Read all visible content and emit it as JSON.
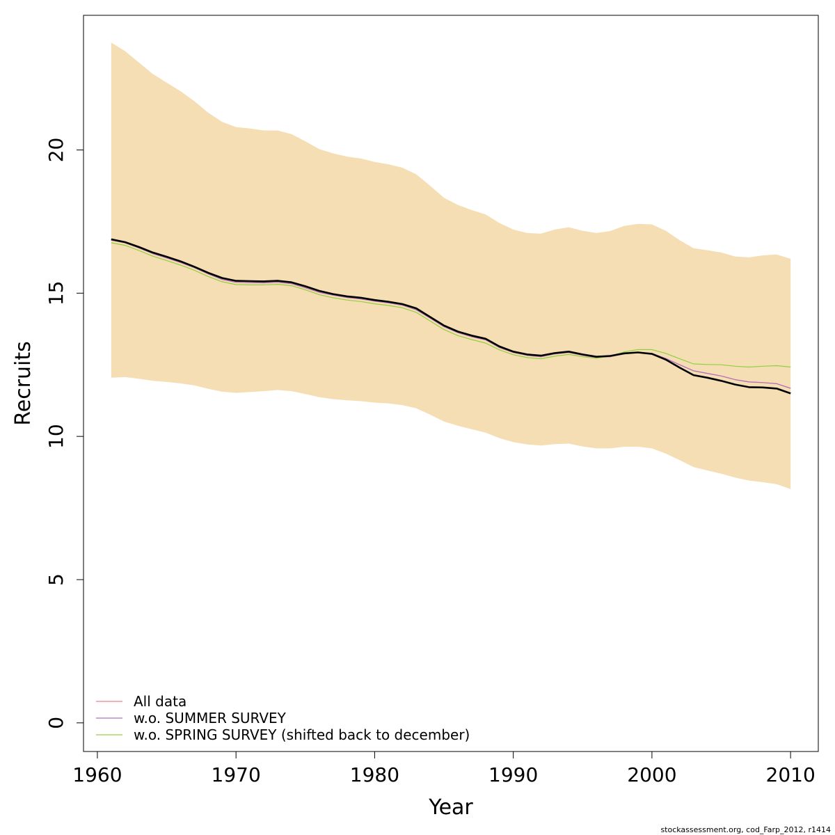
{
  "chart_data": {
    "type": "line",
    "xlabel": "Year",
    "ylabel": "Recruits",
    "xlim": [
      1959,
      2012
    ],
    "ylim": [
      -1,
      24.7
    ],
    "xticks": [
      1960,
      1970,
      1980,
      1990,
      2000,
      2010
    ],
    "yticks": [
      0,
      5,
      10,
      15,
      20
    ],
    "grid": false,
    "legend_position": "bottom-left",
    "x": [
      1961,
      1962,
      1963,
      1964,
      1965,
      1966,
      1967,
      1968,
      1969,
      1970,
      1971,
      1972,
      1973,
      1974,
      1975,
      1976,
      1977,
      1978,
      1979,
      1980,
      1981,
      1982,
      1983,
      1984,
      1985,
      1986,
      1987,
      1988,
      1989,
      1990,
      1991,
      1992,
      1993,
      1994,
      1995,
      1996,
      1997,
      1998,
      1999,
      2000,
      2001,
      2002,
      2003,
      2004,
      2005,
      2006,
      2007,
      2008,
      2009,
      2010
    ],
    "band": {
      "color": "#F5DEB3",
      "upper": [
        23.75,
        23.45,
        23.05,
        22.65,
        22.35,
        22.05,
        21.7,
        21.3,
        20.98,
        20.8,
        20.75,
        20.68,
        20.68,
        20.55,
        20.3,
        20.03,
        19.88,
        19.77,
        19.7,
        19.58,
        19.5,
        19.38,
        19.15,
        18.75,
        18.33,
        18.08,
        17.9,
        17.75,
        17.45,
        17.22,
        17.1,
        17.08,
        17.22,
        17.3,
        17.18,
        17.1,
        17.17,
        17.35,
        17.42,
        17.4,
        17.18,
        16.85,
        16.57,
        16.5,
        16.42,
        16.28,
        16.25,
        16.32,
        16.35,
        16.2
      ],
      "lower": [
        12.05,
        12.07,
        12.01,
        11.94,
        11.9,
        11.85,
        11.78,
        11.66,
        11.56,
        11.52,
        11.55,
        11.58,
        11.62,
        11.58,
        11.48,
        11.37,
        11.3,
        11.26,
        11.23,
        11.18,
        11.15,
        11.09,
        10.98,
        10.76,
        10.52,
        10.37,
        10.25,
        10.13,
        9.94,
        9.8,
        9.72,
        9.68,
        9.73,
        9.75,
        9.65,
        9.58,
        9.58,
        9.64,
        9.64,
        9.58,
        9.4,
        9.17,
        8.93,
        8.81,
        8.7,
        8.56,
        8.46,
        8.4,
        8.33,
        8.16
      ]
    },
    "series": [
      {
        "name": "All data",
        "color": "#F08080",
        "width": 1.2,
        "values": [
          16.85,
          16.76,
          16.58,
          16.38,
          16.23,
          16.07,
          15.89,
          15.67,
          15.48,
          15.38,
          15.37,
          15.36,
          15.38,
          15.33,
          15.19,
          15.03,
          14.93,
          14.85,
          14.8,
          14.72,
          14.66,
          14.58,
          14.42,
          14.13,
          13.83,
          13.62,
          13.48,
          13.37,
          13.1,
          12.93,
          12.83,
          12.78,
          12.88,
          12.93,
          12.83,
          12.75,
          12.78,
          12.88,
          12.93,
          12.9,
          12.72,
          12.5,
          12.29,
          12.2,
          12.11,
          11.98,
          11.9,
          11.88,
          11.84,
          11.68
        ]
      },
      {
        "name": "w.o. SUMMER SURVEY",
        "color": "#B070C0",
        "width": 1.2,
        "values": [
          16.85,
          16.76,
          16.58,
          16.38,
          16.23,
          16.07,
          15.89,
          15.67,
          15.48,
          15.38,
          15.37,
          15.36,
          15.38,
          15.33,
          15.19,
          15.03,
          14.93,
          14.85,
          14.8,
          14.72,
          14.66,
          14.58,
          14.42,
          14.13,
          13.83,
          13.62,
          13.48,
          13.37,
          13.1,
          12.93,
          12.83,
          12.78,
          12.88,
          12.93,
          12.83,
          12.75,
          12.78,
          12.88,
          12.93,
          12.9,
          12.72,
          12.5,
          12.29,
          12.2,
          12.11,
          11.98,
          11.9,
          11.88,
          11.84,
          11.68
        ]
      },
      {
        "name": "w.o. SPRING SURVEY (shifted back to december)",
        "color": "#90D040",
        "width": 1.2,
        "values": [
          16.76,
          16.67,
          16.49,
          16.29,
          16.14,
          15.98,
          15.8,
          15.58,
          15.4,
          15.3,
          15.29,
          15.29,
          15.31,
          15.26,
          15.12,
          14.95,
          14.84,
          14.76,
          14.71,
          14.63,
          14.57,
          14.49,
          14.33,
          14.03,
          13.73,
          13.52,
          13.38,
          13.26,
          13.02,
          12.85,
          12.75,
          12.71,
          12.8,
          12.86,
          12.78,
          12.73,
          12.8,
          12.95,
          13.03,
          13.03,
          12.9,
          12.71,
          12.53,
          12.51,
          12.5,
          12.45,
          12.42,
          12.45,
          12.47,
          12.42
        ]
      },
      {
        "name": "",
        "color": "#000000",
        "width": 2.6,
        "values": [
          16.88,
          16.78,
          16.61,
          16.42,
          16.27,
          16.11,
          15.92,
          15.71,
          15.53,
          15.43,
          15.42,
          15.41,
          15.43,
          15.38,
          15.24,
          15.08,
          14.97,
          14.89,
          14.84,
          14.76,
          14.7,
          14.62,
          14.47,
          14.17,
          13.87,
          13.66,
          13.52,
          13.41,
          13.14,
          12.96,
          12.86,
          12.82,
          12.91,
          12.96,
          12.86,
          12.78,
          12.81,
          12.9,
          12.93,
          12.88,
          12.68,
          12.4,
          12.14,
          12.05,
          11.94,
          11.81,
          11.72,
          11.71,
          11.67,
          11.5
        ]
      }
    ],
    "legend": [
      {
        "label": "All data",
        "color": "#F08080"
      },
      {
        "label": "w.o. SUMMER SURVEY",
        "color": "#B070C0"
      },
      {
        "label": "w.o. SPRING SURVEY (shifted back to december)",
        "color": "#90D040"
      }
    ]
  },
  "footer": "stockassessment.org, cod_Farp_2012, r1414"
}
